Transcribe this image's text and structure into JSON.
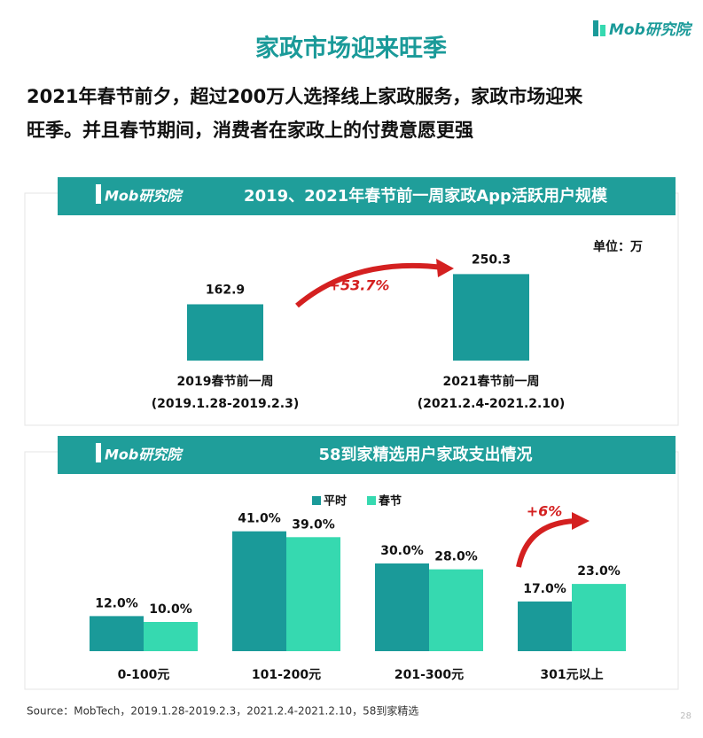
{
  "brand": "Mob研究院",
  "title": "家政市场迎来旺季",
  "headline": [
    "2021年春节前夕，超过200万人选择线上家政服务，家政市场迎来",
    "旺季。并且春节期间，消费者在家政上的付费意愿更强"
  ],
  "chart_data": [
    {
      "type": "bar",
      "title": "2019、2021年春节前一周家政App活跃用户规模",
      "unit": "单位：万",
      "categories": [
        "2019春节前一周",
        "2021春节前一周"
      ],
      "category_dates": [
        "(2019.1.28-2019.2.3)",
        "(2021.2.4-2021.2.10)"
      ],
      "values": [
        162.9,
        250.3
      ],
      "color": "#1a9a99",
      "annotation": "+53.7%"
    },
    {
      "type": "grouped_bar",
      "title": "58到家精选用户家政支出情况",
      "categories": [
        "0-100元",
        "101-200元",
        "201-300元",
        "301元以上"
      ],
      "series": [
        {
          "name": "平时",
          "color": "#1a9a99",
          "values": [
            12,
            41,
            30,
            17
          ],
          "value_labels": [
            "12.0%",
            "41.0%",
            "30.0%",
            "17.0%"
          ]
        },
        {
          "name": "春节",
          "color": "#36d9b0",
          "values": [
            10,
            39,
            28,
            23
          ],
          "value_labels": [
            "10.0%",
            "39.0%",
            "28.0%",
            "23.0%"
          ]
        }
      ],
      "legend": "top",
      "annotation": "+6%"
    }
  ],
  "source": "Source：MobTech，2019.1.28-2019.2.3，2021.2.4-2021.2.10，58到家精选",
  "page_number": "28"
}
